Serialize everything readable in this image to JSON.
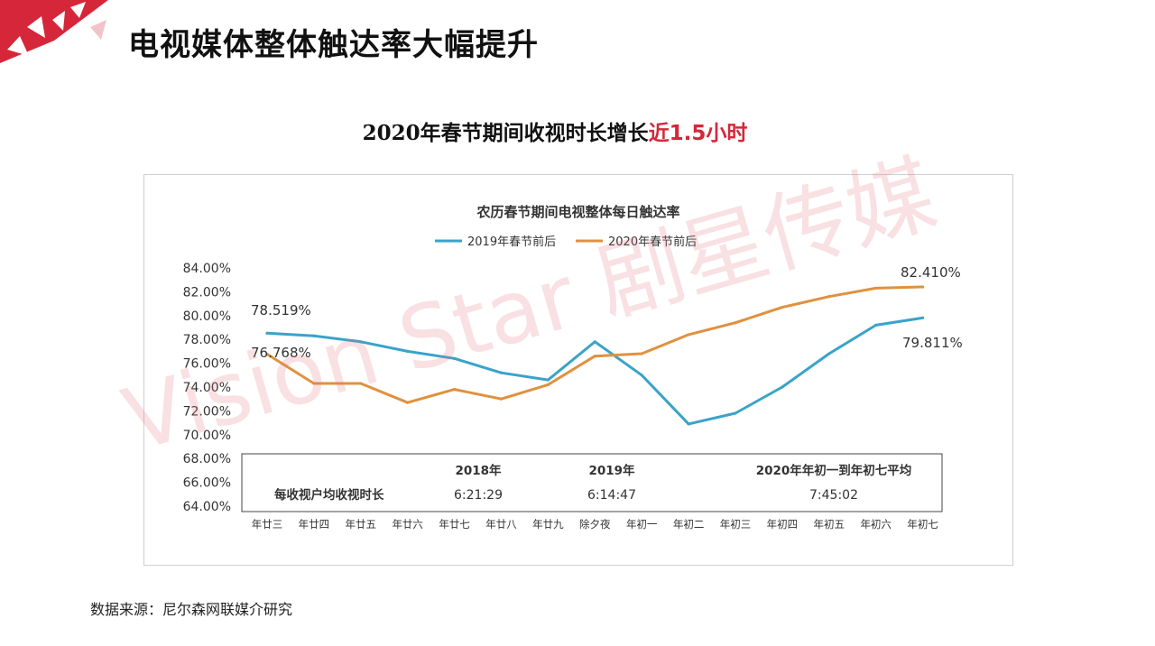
{
  "header": {
    "title": "电视媒体整体触达率大幅提升"
  },
  "subtitle": {
    "main": "2020年春节期间收视时长增长",
    "highlight": "近1.5小时"
  },
  "watermark": {
    "text": "Vision Star 剧星传媒"
  },
  "colors": {
    "accent_red": "#d6263a",
    "series_2019": "#3aa3c9",
    "series_2020": "#e0913f"
  },
  "chart_data": {
    "type": "line",
    "title": "农历春节期间电视整体每日触达率",
    "categories": [
      "年廿三",
      "年廿四",
      "年廿五",
      "年廿六",
      "年廿七",
      "年廿八",
      "年廿九",
      "除夕夜",
      "年初一",
      "年初二",
      "年初三",
      "年初四",
      "年初五",
      "年初六",
      "年初七"
    ],
    "series": [
      {
        "name": "2019年春节前后",
        "color": "#3aa3c9",
        "values": [
          78.519,
          78.3,
          77.8,
          77.0,
          76.4,
          75.2,
          74.6,
          77.8,
          75.0,
          70.9,
          71.8,
          74.0,
          76.8,
          79.2,
          79.811
        ]
      },
      {
        "name": "2020年春节前后",
        "color": "#e0913f",
        "values": [
          76.768,
          74.3,
          74.3,
          72.7,
          73.8,
          73.0,
          74.2,
          76.6,
          76.8,
          78.4,
          79.4,
          80.7,
          81.6,
          82.3,
          82.41
        ]
      }
    ],
    "ylim": [
      64,
      84
    ],
    "yticks": [
      "84.00%",
      "82.00%",
      "80.00%",
      "78.00%",
      "76.00%",
      "74.00%",
      "72.00%",
      "70.00%",
      "68.00%",
      "66.00%",
      "64.00%"
    ],
    "annotations": {
      "start_2019": "78.519%",
      "start_2020": "76.768%",
      "end_2020": "82.410%",
      "end_2019": "79.811%"
    },
    "legend_position": "top-center",
    "table": {
      "row_label": "每收视户均收视时长",
      "headers": [
        "2018年",
        "2019年",
        "2020年年初一到年初七平均"
      ],
      "values": [
        "6:21:29",
        "6:14:47",
        "7:45:02"
      ]
    }
  },
  "footer": {
    "source": "数据来源：尼尔森网联媒介研究"
  }
}
